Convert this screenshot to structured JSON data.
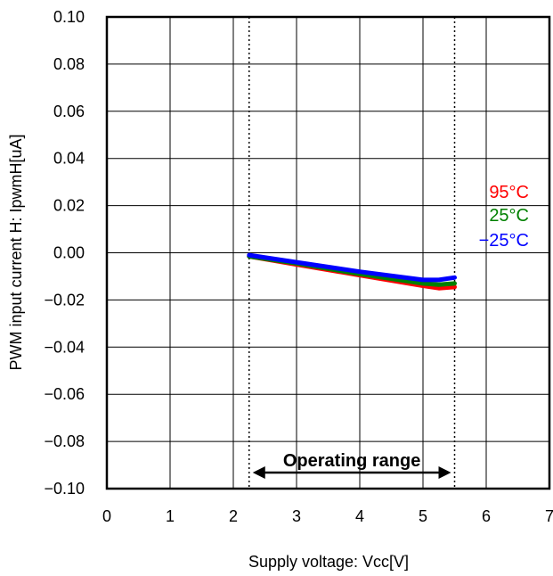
{
  "chart_data": {
    "type": "line",
    "title": "",
    "xlabel": "Supply voltage: Vcc[V]",
    "ylabel": "PWM input current H: IpwmH[uA]",
    "xlim": [
      0,
      7
    ],
    "ylim": [
      -0.1,
      0.1
    ],
    "x_ticks": [
      0,
      1,
      2,
      3,
      4,
      5,
      6,
      7
    ],
    "x_tick_labels": [
      "0",
      "1",
      "2",
      "3",
      "4",
      "5",
      "6",
      "7"
    ],
    "y_ticks": [
      0.1,
      0.08,
      0.06,
      0.04,
      0.02,
      0.0,
      -0.02,
      -0.04,
      -0.06,
      -0.08,
      -0.1
    ],
    "y_tick_labels": [
      "0.10",
      "0.08",
      "0.06",
      "0.04",
      "0.02",
      "0.00",
      "−0.02",
      "−0.04",
      "−0.06",
      "−0.08",
      "−0.10"
    ],
    "grid": true,
    "series": [
      {
        "name": "95°C",
        "color": "#ff0000",
        "x": [
          2.25,
          3.0,
          4.0,
          5.0,
          5.25,
          5.5
        ],
        "y": [
          -0.0015,
          -0.005,
          -0.0095,
          -0.014,
          -0.015,
          -0.0145
        ]
      },
      {
        "name": "25°C",
        "color": "#008000",
        "x": [
          2.25,
          3.0,
          4.0,
          5.0,
          5.25,
          5.5
        ],
        "y": [
          -0.0015,
          -0.0045,
          -0.009,
          -0.013,
          -0.0135,
          -0.013
        ]
      },
      {
        "name": "−25°C",
        "color": "#0000ff",
        "x": [
          2.25,
          3.0,
          4.0,
          5.0,
          5.25,
          5.5
        ],
        "y": [
          -0.001,
          -0.004,
          -0.008,
          -0.0115,
          -0.0115,
          -0.0105
        ]
      }
    ],
    "operating_range": {
      "label": "Operating range",
      "x_start": 2.25,
      "x_end": 5.5
    }
  }
}
